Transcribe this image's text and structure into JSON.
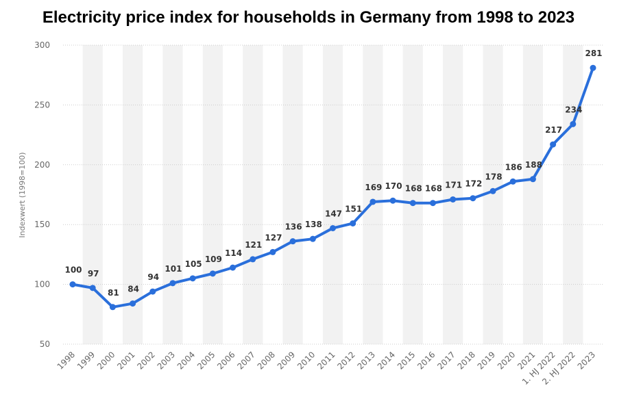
{
  "chart_data": {
    "type": "line",
    "title": "Electricity price index for households in Germany from 1998 to 2023",
    "ylabel": "Indexwert (1998=100)",
    "xlabel": "",
    "ylim": [
      50,
      300
    ],
    "yticks": [
      50,
      100,
      150,
      200,
      250,
      300
    ],
    "grid": true,
    "legend": "none",
    "categories": [
      "1998",
      "1999",
      "2000",
      "2001",
      "2002",
      "2003",
      "2004",
      "2005",
      "2006",
      "2007",
      "2008",
      "2009",
      "2010",
      "2011",
      "2012",
      "2013",
      "2014",
      "2015",
      "2016",
      "2017",
      "2018",
      "2019",
      "2020",
      "2021",
      "1. HJ 2022",
      "2. HJ 2022",
      "2023"
    ],
    "series": [
      {
        "values": [
          100,
          97,
          81,
          84,
          94,
          101,
          105,
          109,
          114,
          121,
          127,
          136,
          138,
          147,
          151,
          169,
          170,
          168,
          168,
          171,
          172,
          178,
          186,
          188,
          217,
          234,
          281
        ]
      }
    ],
    "colors": {
      "line": "#2a6fdb",
      "band": "#f2f2f2",
      "grid": "#cccccc"
    }
  }
}
